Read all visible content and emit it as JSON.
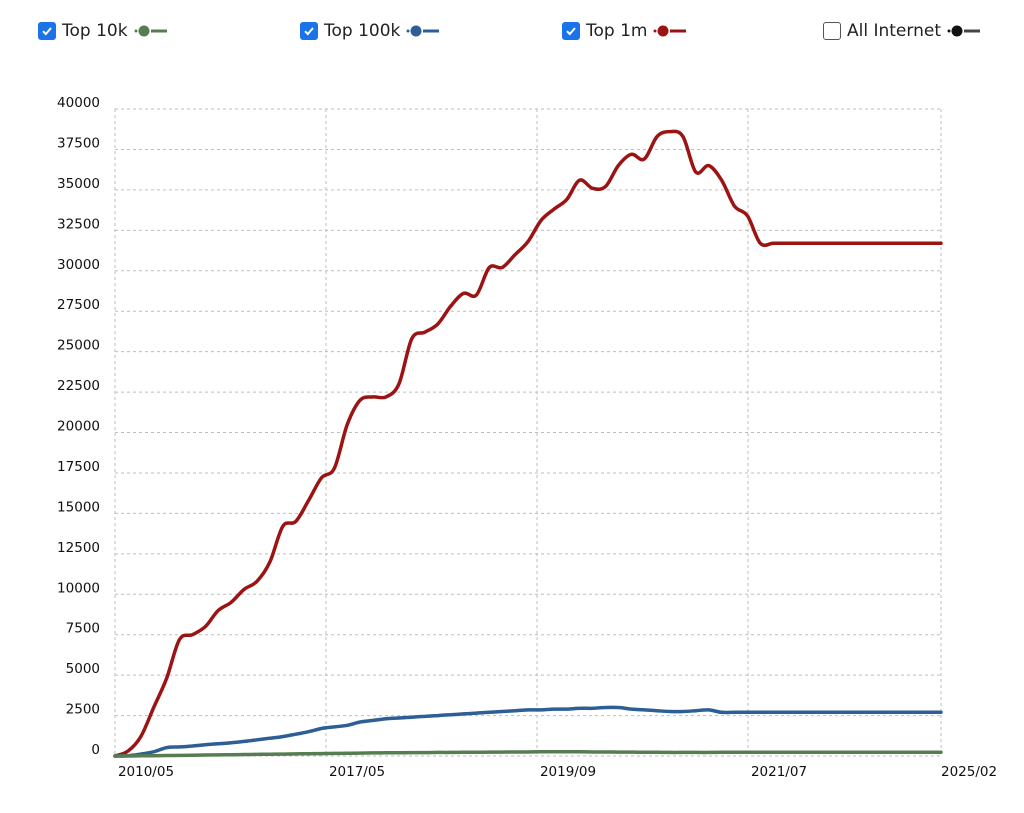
{
  "legend": [
    {
      "label": "Top 10k",
      "checked": true,
      "color": "#567d52",
      "icon": "checkbox-checked"
    },
    {
      "label": "Top 100k",
      "checked": true,
      "color": "#2d5e96",
      "icon": "checkbox-checked"
    },
    {
      "label": "Top 1m",
      "checked": true,
      "color": "#9b1313",
      "icon": "checkbox-checked"
    },
    {
      "label": "All Internet",
      "checked": false,
      "color": "#111111",
      "icon": "checkbox-unchecked"
    }
  ],
  "chart_data": {
    "type": "line",
    "title": "",
    "xlabel": "",
    "ylabel": "",
    "ylim": [
      0,
      40000
    ],
    "yticks": [
      0,
      2500,
      5000,
      7500,
      10000,
      12500,
      15000,
      17500,
      20000,
      22500,
      25000,
      27500,
      30000,
      32500,
      35000,
      37500,
      40000
    ],
    "xticks": [
      "2010/05",
      "2017/05",
      "2019/09",
      "2021/07",
      "2025/02"
    ],
    "grid": true,
    "legend_position": "top",
    "x": [
      "2009/11",
      "2010/05",
      "2010/08",
      "2011/01",
      "2011/06",
      "2012/02",
      "2012/07",
      "2013/01",
      "2013/06",
      "2013/09",
      "2014/01",
      "2014/05",
      "2014/10",
      "2015/02",
      "2015/07",
      "2015/11",
      "2016/04",
      "2016/08",
      "2016/12",
      "2017/03",
      "2017/05",
      "2017/06",
      "2017/08",
      "2017/10",
      "2017/12",
      "2018/02",
      "2018/04",
      "2018/06",
      "2018/08",
      "2018/10",
      "2018/12",
      "2019/02",
      "2019/04",
      "2019/06",
      "2019/07",
      "2019/09",
      "2019/10",
      "2019/12",
      "2020/02",
      "2020/04",
      "2020/06",
      "2020/07",
      "2020/09",
      "2020/11",
      "2021/01",
      "2021/03",
      "2021/05",
      "2021/07",
      "2021/09",
      "2021/11",
      "2022/01",
      "2022/03",
      "2022/05",
      "2022/07",
      "2022/09",
      "2022/11",
      "2023/01",
      "2023/03",
      "2023/06",
      "2023/09",
      "2023/12",
      "2024/03",
      "2024/06",
      "2024/09",
      "2025/02"
    ],
    "series": [
      {
        "name": "Top 1m",
        "color": "#9b1313",
        "values": [
          0,
          300,
          1200,
          3000,
          4800,
          7200,
          7500,
          8000,
          9000,
          9500,
          10300,
          10800,
          12000,
          14200,
          14500,
          15800,
          17200,
          17800,
          20500,
          22000,
          22200,
          22200,
          23000,
          25800,
          26200,
          26700,
          27800,
          28600,
          28500,
          30200,
          30200,
          31000,
          31800,
          33100,
          33800,
          34400,
          35600,
          35100,
          35200,
          36500,
          37200,
          36900,
          38300,
          38600,
          38300,
          36100,
          36500,
          35600,
          34000,
          33400,
          31700,
          31700,
          31700,
          31700,
          31700,
          31700,
          31700,
          31700,
          31700,
          31700,
          31700,
          31700,
          31700,
          31700,
          31700
        ]
      },
      {
        "name": "Top 100k",
        "color": "#2d5e96",
        "values": [
          0,
          20,
          120,
          260,
          520,
          560,
          620,
          700,
          760,
          820,
          900,
          1000,
          1100,
          1200,
          1350,
          1500,
          1700,
          1800,
          1900,
          2100,
          2200,
          2300,
          2350,
          2400,
          2450,
          2500,
          2550,
          2600,
          2650,
          2700,
          2750,
          2800,
          2850,
          2850,
          2900,
          2900,
          2950,
          2950,
          3000,
          3000,
          2900,
          2850,
          2800,
          2750,
          2750,
          2800,
          2850,
          2700,
          2700,
          2700,
          2700,
          2700,
          2700,
          2700,
          2700,
          2700,
          2700,
          2700,
          2700,
          2700,
          2700,
          2700,
          2700,
          2700,
          2700
        ]
      },
      {
        "name": "Top 10k",
        "color": "#567d52",
        "values": [
          0,
          0,
          10,
          20,
          30,
          40,
          50,
          60,
          70,
          80,
          90,
          100,
          110,
          120,
          130,
          140,
          150,
          160,
          170,
          180,
          190,
          200,
          200,
          210,
          210,
          220,
          220,
          230,
          230,
          240,
          240,
          250,
          250,
          260,
          260,
          260,
          260,
          250,
          250,
          240,
          240,
          230,
          230,
          220,
          220,
          220,
          220,
          230,
          230,
          230,
          230,
          230,
          230,
          230,
          230,
          230,
          230,
          230,
          230,
          230,
          230,
          230,
          230,
          230,
          230
        ]
      }
    ]
  }
}
